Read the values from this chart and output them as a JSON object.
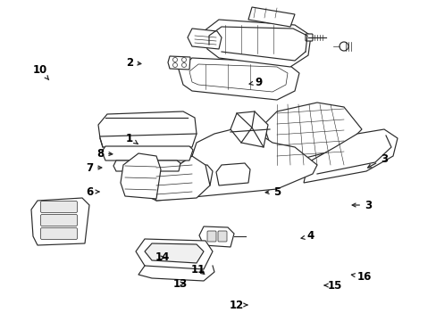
{
  "background_color": "#ffffff",
  "line_color": "#2a2a2a",
  "label_color": "#000000",
  "fig_width": 4.89,
  "fig_height": 3.6,
  "dpi": 100,
  "fontsize": 8.5,
  "lw": 0.85
}
